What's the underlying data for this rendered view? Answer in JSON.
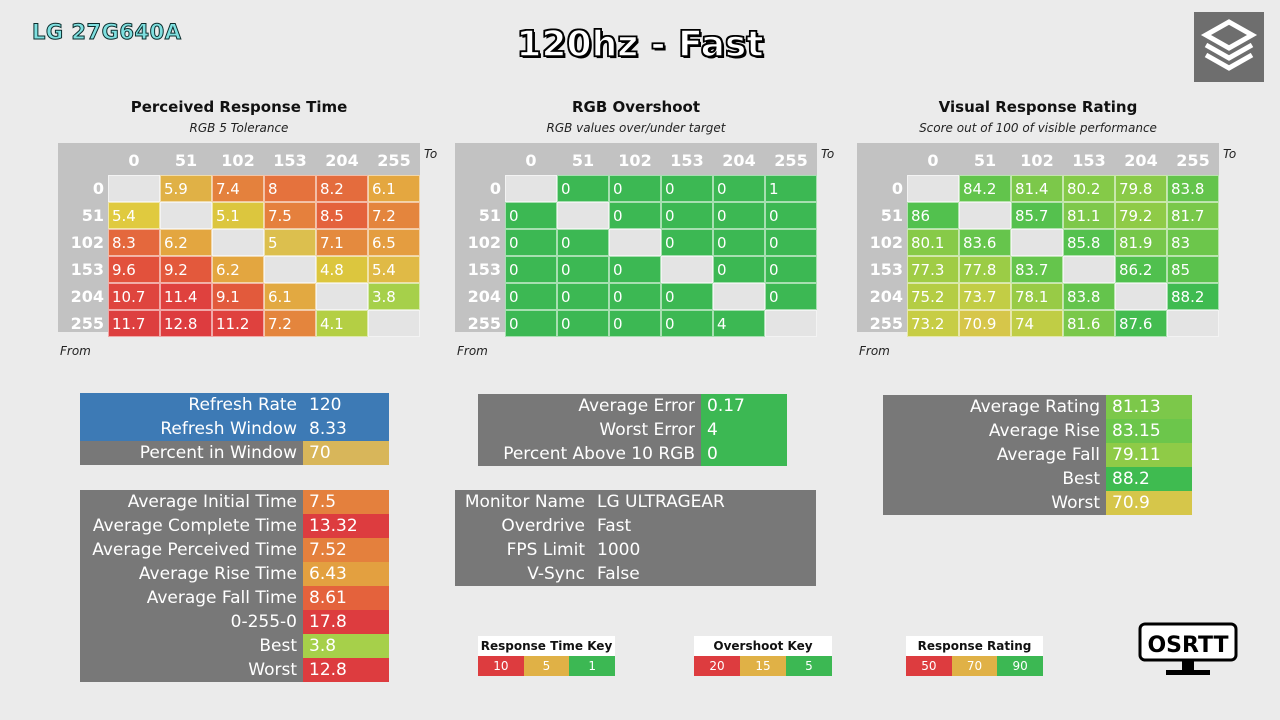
{
  "brand": "LG 27G640A",
  "title": "120hz - Fast",
  "matrices": [
    {
      "title": "Perceived Response Time",
      "subtitle": "RGB 5 Tolerance",
      "to_label": "To",
      "from_label": "From",
      "headers": [
        "0",
        "51",
        "102",
        "153",
        "204",
        "255"
      ],
      "rows": [
        {
          "label": "0",
          "cells": [
            {
              "v": "",
              "c": "#e4e4e4"
            },
            {
              "v": "5.9",
              "c": "#e0b146"
            },
            {
              "v": "7.4",
              "c": "#e4813d"
            },
            {
              "v": "8",
              "c": "#e5723d"
            },
            {
              "v": "8.2",
              "c": "#e46c3d"
            },
            {
              "v": "6.1",
              "c": "#e4a740"
            }
          ]
        },
        {
          "label": "51",
          "cells": [
            {
              "v": "5.4",
              "c": "#e0ca3f"
            },
            {
              "v": "",
              "c": "#e4e4e4"
            },
            {
              "v": "5.1",
              "c": "#dcc63e"
            },
            {
              "v": "7.5",
              "c": "#e5803d"
            },
            {
              "v": "8.5",
              "c": "#e4623c"
            },
            {
              "v": "7.2",
              "c": "#e4853d"
            }
          ]
        },
        {
          "label": "102",
          "cells": [
            {
              "v": "8.3",
              "c": "#e4683d"
            },
            {
              "v": "6.2",
              "c": "#e3a640"
            },
            {
              "v": "",
              "c": "#e4e4e4"
            },
            {
              "v": "5",
              "c": "#dcbf4e"
            },
            {
              "v": "7.1",
              "c": "#e48a3e"
            },
            {
              "v": "6.5",
              "c": "#e49d40"
            }
          ]
        },
        {
          "label": "153",
          "cells": [
            {
              "v": "9.6",
              "c": "#e2513c"
            },
            {
              "v": "9.2",
              "c": "#e3593c"
            },
            {
              "v": "6.2",
              "c": "#e3a640"
            },
            {
              "v": "",
              "c": "#e4e4e4"
            },
            {
              "v": "4.8",
              "c": "#dcc63e"
            },
            {
              "v": "5.4",
              "c": "#e0ba46"
            }
          ]
        },
        {
          "label": "204",
          "cells": [
            {
              "v": "10.7",
              "c": "#df453e"
            },
            {
              "v": "11.4",
              "c": "#df413e"
            },
            {
              "v": "9.1",
              "c": "#e25a3c"
            },
            {
              "v": "6.1",
              "c": "#e2a941"
            },
            {
              "v": "",
              "c": "#e4e4e4"
            },
            {
              "v": "3.8",
              "c": "#a6d04a"
            }
          ]
        },
        {
          "label": "255",
          "cells": [
            {
              "v": "11.7",
              "c": "#dd3f3f"
            },
            {
              "v": "12.8",
              "c": "#dd3c3f"
            },
            {
              "v": "11.2",
              "c": "#df413e"
            },
            {
              "v": "7.2",
              "c": "#e4853d"
            },
            {
              "v": "4.1",
              "c": "#b4cf44"
            },
            {
              "v": "",
              "c": "#e4e4e4"
            }
          ]
        }
      ]
    },
    {
      "title": "RGB Overshoot",
      "subtitle": "RGB values over/under target",
      "to_label": "To",
      "from_label": "From",
      "headers": [
        "0",
        "51",
        "102",
        "153",
        "204",
        "255"
      ],
      "rows": [
        {
          "label": "0",
          "cells": [
            {
              "v": "",
              "c": "#e4e4e4"
            },
            {
              "v": "0",
              "c": "#3cb853"
            },
            {
              "v": "0",
              "c": "#3cb853"
            },
            {
              "v": "0",
              "c": "#3cb853"
            },
            {
              "v": "0",
              "c": "#3cb853"
            },
            {
              "v": "1",
              "c": "#3cb853"
            }
          ]
        },
        {
          "label": "51",
          "cells": [
            {
              "v": "0",
              "c": "#3cb853"
            },
            {
              "v": "",
              "c": "#e4e4e4"
            },
            {
              "v": "0",
              "c": "#3cb853"
            },
            {
              "v": "0",
              "c": "#3cb853"
            },
            {
              "v": "0",
              "c": "#3cb853"
            },
            {
              "v": "0",
              "c": "#3cb853"
            }
          ]
        },
        {
          "label": "102",
          "cells": [
            {
              "v": "0",
              "c": "#3cb853"
            },
            {
              "v": "0",
              "c": "#3cb853"
            },
            {
              "v": "",
              "c": "#e4e4e4"
            },
            {
              "v": "0",
              "c": "#3cb853"
            },
            {
              "v": "0",
              "c": "#3cb853"
            },
            {
              "v": "0",
              "c": "#3cb853"
            }
          ]
        },
        {
          "label": "153",
          "cells": [
            {
              "v": "0",
              "c": "#3cb853"
            },
            {
              "v": "0",
              "c": "#3cb853"
            },
            {
              "v": "0",
              "c": "#3cb853"
            },
            {
              "v": "",
              "c": "#e4e4e4"
            },
            {
              "v": "0",
              "c": "#3cb853"
            },
            {
              "v": "0",
              "c": "#3cb853"
            }
          ]
        },
        {
          "label": "204",
          "cells": [
            {
              "v": "0",
              "c": "#3cb853"
            },
            {
              "v": "0",
              "c": "#3cb853"
            },
            {
              "v": "0",
              "c": "#3cb853"
            },
            {
              "v": "0",
              "c": "#3cb853"
            },
            {
              "v": "",
              "c": "#e4e4e4"
            },
            {
              "v": "0",
              "c": "#3cb853"
            }
          ]
        },
        {
          "label": "255",
          "cells": [
            {
              "v": "0",
              "c": "#3cb853"
            },
            {
              "v": "0",
              "c": "#3cb853"
            },
            {
              "v": "0",
              "c": "#3cb853"
            },
            {
              "v": "0",
              "c": "#3cb853"
            },
            {
              "v": "4",
              "c": "#3cb853"
            },
            {
              "v": "",
              "c": "#e4e4e4"
            }
          ]
        }
      ]
    },
    {
      "title": "Visual Response Rating",
      "subtitle": "Score out of 100 of visible performance",
      "to_label": "To",
      "from_label": "From",
      "headers": [
        "0",
        "51",
        "102",
        "153",
        "204",
        "255"
      ],
      "rows": [
        {
          "label": "0",
          "cells": [
            {
              "v": "",
              "c": "#e4e4e4"
            },
            {
              "v": "84.2",
              "c": "#62c44c"
            },
            {
              "v": "81.4",
              "c": "#7cc84a"
            },
            {
              "v": "80.2",
              "c": "#85ca48"
            },
            {
              "v": "79.8",
              "c": "#8aca48"
            },
            {
              "v": "83.8",
              "c": "#64c44c"
            }
          ]
        },
        {
          "label": "51",
          "cells": [
            {
              "v": "86",
              "c": "#52c14e"
            },
            {
              "v": "",
              "c": "#e4e4e4"
            },
            {
              "v": "85.7",
              "c": "#55c14e"
            },
            {
              "v": "81.1",
              "c": "#7ec84a"
            },
            {
              "v": "79.2",
              "c": "#8fcb47"
            },
            {
              "v": "81.7",
              "c": "#79c84a"
            }
          ]
        },
        {
          "label": "102",
          "cells": [
            {
              "v": "80.1",
              "c": "#87ca48"
            },
            {
              "v": "83.6",
              "c": "#66c54c"
            },
            {
              "v": "",
              "c": "#e4e4e4"
            },
            {
              "v": "85.8",
              "c": "#54c14e"
            },
            {
              "v": "81.9",
              "c": "#76c74a"
            },
            {
              "v": "83",
              "c": "#6cc64b"
            }
          ]
        },
        {
          "label": "153",
          "cells": [
            {
              "v": "77.3",
              "c": "#a0cc45"
            },
            {
              "v": "77.8",
              "c": "#9bcc46"
            },
            {
              "v": "83.7",
              "c": "#65c54c"
            },
            {
              "v": "",
              "c": "#e4e4e4"
            },
            {
              "v": "86.2",
              "c": "#50c04e"
            },
            {
              "v": "85",
              "c": "#5bc24d"
            }
          ]
        },
        {
          "label": "204",
          "cells": [
            {
              "v": "75.2",
              "c": "#b4cd44"
            },
            {
              "v": "73.7",
              "c": "#c2cd45"
            },
            {
              "v": "78.1",
              "c": "#98cb46"
            },
            {
              "v": "83.8",
              "c": "#64c44c"
            },
            {
              "v": "",
              "c": "#e4e4e4"
            },
            {
              "v": "88.2",
              "c": "#3fbb50"
            }
          ]
        },
        {
          "label": "255",
          "cells": [
            {
              "v": "73.2",
              "c": "#c7cd45"
            },
            {
              "v": "70.9",
              "c": "#d6c64a"
            },
            {
              "v": "74",
              "c": "#c0cd45"
            },
            {
              "v": "81.6",
              "c": "#7ac84a"
            },
            {
              "v": "87.6",
              "c": "#44bc50"
            },
            {
              "v": "",
              "c": "#e4e4e4"
            }
          ]
        }
      ]
    }
  ],
  "refresh_table": {
    "rows": [
      {
        "label": "Refresh Rate",
        "value": "120",
        "label_color": "#3d7ab5",
        "value_color": "#3d7ab5"
      },
      {
        "label": "Refresh Window",
        "value": "8.33",
        "label_color": "#3d7ab5",
        "value_color": "#3d7ab5"
      },
      {
        "label": "Percent in Window",
        "value": "70",
        "label_color": "#787878",
        "value_color": "#d8b65a"
      }
    ]
  },
  "timing_table": {
    "rows": [
      {
        "label": "Average Initial Time",
        "value": "7.5",
        "value_color": "#e4803d"
      },
      {
        "label": "Average Complete Time",
        "value": "13.32",
        "value_color": "#dd3c3f"
      },
      {
        "label": "Average Perceived Time",
        "value": "7.52",
        "value_color": "#e4803d"
      },
      {
        "label": "Average Rise Time",
        "value": "6.43",
        "value_color": "#e3a040"
      },
      {
        "label": "Average Fall Time",
        "value": "8.61",
        "value_color": "#e4623c"
      },
      {
        "label": "0-255-0",
        "value": "17.8",
        "value_color": "#dd3c3f"
      },
      {
        "label": "Best",
        "value": "3.8",
        "value_color": "#a6d04a"
      },
      {
        "label": "Worst",
        "value": "12.8",
        "value_color": "#dd3c3f"
      }
    ]
  },
  "overshoot_table": {
    "rows": [
      {
        "label": "Average Error",
        "value": "0.17",
        "value_color": "#3cb853"
      },
      {
        "label": "Worst Error",
        "value": "4",
        "value_color": "#3cb853"
      },
      {
        "label": "Percent Above 10 RGB",
        "value": "0",
        "value_color": "#3cb853"
      }
    ]
  },
  "monitor_table": {
    "rows": [
      {
        "label": "Monitor Name",
        "value": "LG ULTRAGEAR"
      },
      {
        "label": "Overdrive",
        "value": "Fast"
      },
      {
        "label": "FPS Limit",
        "value": "1000"
      },
      {
        "label": "V-Sync",
        "value": "False"
      }
    ]
  },
  "rating_table": {
    "rows": [
      {
        "label": "Average Rating",
        "value": "81.13",
        "value_color": "#7cc84a"
      },
      {
        "label": "Average Rise",
        "value": "83.15",
        "value_color": "#6cc64b"
      },
      {
        "label": "Average Fall",
        "value": "79.11",
        "value_color": "#8fcb47"
      },
      {
        "label": "Best",
        "value": "88.2",
        "value_color": "#3fbb50"
      },
      {
        "label": "Worst",
        "value": "70.9",
        "value_color": "#d6c64a"
      }
    ]
  },
  "keys": [
    {
      "title": "Response Time Key",
      "cells": [
        {
          "v": "10",
          "c": "#dd3c3f"
        },
        {
          "v": "5",
          "c": "#e0b146"
        },
        {
          "v": "1",
          "c": "#3cb853"
        }
      ]
    },
    {
      "title": "Overshoot Key",
      "cells": [
        {
          "v": "20",
          "c": "#dd3c3f"
        },
        {
          "v": "15",
          "c": "#e0b146"
        },
        {
          "v": "5",
          "c": "#3cb853"
        }
      ]
    },
    {
      "title": "Response Rating Key",
      "cells": [
        {
          "v": "50",
          "c": "#dd3c3f"
        },
        {
          "v": "70",
          "c": "#e0b146"
        },
        {
          "v": "90",
          "c": "#3cb853"
        }
      ]
    }
  ],
  "osrtt_logo": "OSRTT",
  "icons": {
    "corner_logo": "stacked-cube-logo-icon",
    "monitor_logo": "monitor-icon"
  }
}
